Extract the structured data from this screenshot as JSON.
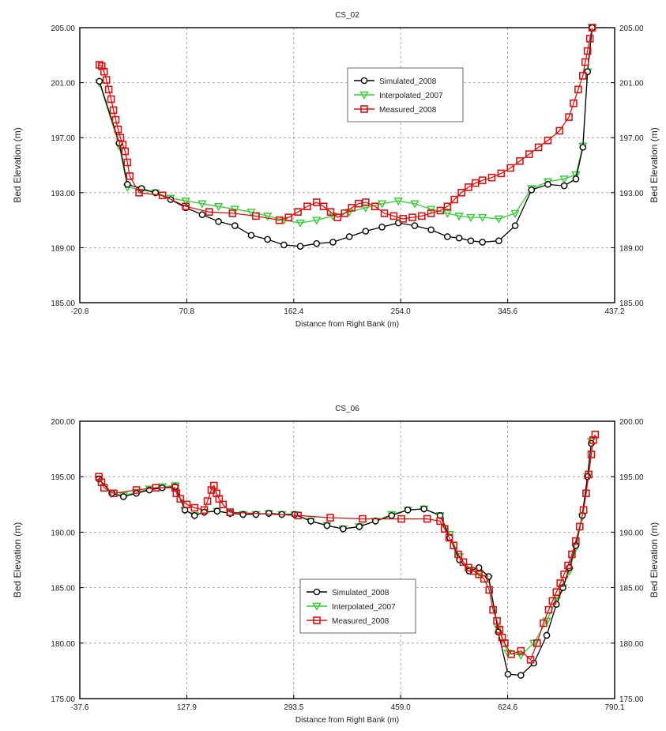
{
  "colors": {
    "simulated": "#000000",
    "interpolated": "#33cc33",
    "measured": "#dd1111",
    "grid": "#9a9a9a"
  },
  "chart_data": [
    {
      "type": "line",
      "title": "CS_02",
      "xlabel": "Distance from Right Bank (m)",
      "ylabel": "Bed Elevation (m)",
      "xlim": [
        -20.8,
        437.2
      ],
      "ylim": [
        185.0,
        205.0
      ],
      "xticks": [
        "-20.8",
        "70.8",
        "162.4",
        "254.0",
        "345.6",
        "437.2"
      ],
      "yticks": [
        "185.00",
        "189.00",
        "193.00",
        "197.00",
        "201.00",
        "205.00"
      ],
      "grid": true,
      "legend_position": "top-center",
      "series": [
        {
          "name": "Simulated_2008",
          "marker": "circle",
          "x": [
            -4,
            13,
            20,
            32,
            44,
            57,
            70,
            84,
            98,
            112,
            126,
            140,
            154,
            168,
            182,
            196,
            210,
            224,
            238,
            252,
            266,
            280,
            294,
            304,
            314,
            324,
            338,
            352,
            366,
            380,
            394,
            404,
            410,
            414,
            418
          ],
          "y": [
            201.1,
            196.6,
            193.6,
            193.3,
            193.0,
            192.5,
            191.9,
            191.4,
            190.9,
            190.6,
            189.9,
            189.6,
            189.2,
            189.1,
            189.3,
            189.4,
            189.8,
            190.2,
            190.5,
            190.8,
            190.6,
            190.3,
            189.8,
            189.7,
            189.5,
            189.4,
            189.5,
            190.6,
            193.2,
            193.6,
            193.5,
            194.0,
            196.3,
            201.8,
            205.0
          ]
        },
        {
          "name": "Interpolated_2007",
          "marker": "triangle-down",
          "x": [
            -4,
            13,
            20,
            32,
            44,
            57,
            70,
            84,
            98,
            112,
            126,
            140,
            154,
            168,
            182,
            196,
            210,
            224,
            238,
            252,
            266,
            280,
            294,
            304,
            314,
            324,
            338,
            352,
            366,
            380,
            394,
            404,
            410,
            414,
            418
          ],
          "y": [
            201.0,
            196.4,
            193.4,
            193.2,
            193.0,
            192.6,
            192.4,
            192.2,
            192.0,
            191.8,
            191.6,
            191.3,
            191.0,
            190.8,
            191.0,
            191.3,
            191.6,
            191.9,
            192.2,
            192.4,
            192.2,
            191.8,
            191.5,
            191.3,
            191.2,
            191.2,
            191.1,
            191.5,
            193.3,
            193.8,
            194.0,
            194.3,
            196.4,
            201.8,
            205.0
          ]
        },
        {
          "name": "Measured_2008",
          "marker": "square",
          "x": [
            -4,
            -2,
            0,
            2,
            4,
            6,
            8,
            10,
            12,
            14,
            16,
            18,
            20,
            22,
            30,
            50,
            70,
            90,
            110,
            130,
            150,
            158,
            166,
            174,
            182,
            188,
            194,
            200,
            206,
            212,
            218,
            224,
            232,
            240,
            248,
            256,
            264,
            272,
            280,
            288,
            294,
            300,
            306,
            312,
            318,
            324,
            332,
            340,
            348,
            356,
            364,
            372,
            380,
            390,
            398,
            402,
            406,
            410,
            412,
            414,
            416,
            418
          ],
          "y": [
            202.3,
            202.2,
            201.8,
            201.2,
            200.5,
            199.8,
            199.0,
            198.3,
            197.6,
            197.0,
            196.5,
            196.0,
            195.2,
            194.2,
            193.0,
            192.8,
            192.0,
            191.6,
            191.5,
            191.3,
            191.0,
            191.2,
            191.6,
            192.0,
            192.3,
            192.0,
            191.6,
            191.2,
            191.5,
            191.9,
            192.2,
            192.3,
            192.0,
            191.5,
            191.3,
            191.1,
            191.2,
            191.3,
            191.5,
            191.7,
            192.0,
            192.5,
            193.0,
            193.4,
            193.7,
            193.9,
            194.1,
            194.4,
            194.8,
            195.3,
            195.8,
            196.3,
            196.8,
            197.5,
            198.5,
            199.5,
            200.5,
            201.5,
            202.5,
            203.3,
            204.2,
            205.0
          ]
        }
      ]
    },
    {
      "type": "line",
      "title": "CS_06",
      "xlabel": "Distance from Right Bank (m)",
      "ylabel": "Bed Elevation (m)",
      "xlim": [
        -37.6,
        790.1
      ],
      "ylim": [
        175.0,
        200.0
      ],
      "xticks": [
        "-37.6",
        "127.9",
        "293.5",
        "459.0",
        "624.6",
        "790.1"
      ],
      "yticks": [
        "175.00",
        "180.00",
        "185.00",
        "190.00",
        "195.00",
        "200.00"
      ],
      "grid": true,
      "legend_position": "bottom-center",
      "series": [
        {
          "name": "Simulated_2008",
          "marker": "circle",
          "x": [
            -8,
            12,
            30,
            50,
            70,
            90,
            110,
            125,
            140,
            155,
            175,
            195,
            215,
            235,
            255,
            275,
            295,
            320,
            345,
            370,
            395,
            420,
            445,
            470,
            495,
            520,
            535,
            550,
            565,
            580,
            595,
            610,
            625,
            645,
            665,
            685,
            700,
            710,
            720,
            730,
            740,
            748,
            754
          ],
          "y": [
            194.8,
            193.5,
            193.2,
            193.5,
            193.8,
            194.0,
            194.1,
            192.0,
            191.5,
            191.8,
            191.9,
            191.7,
            191.6,
            191.6,
            191.7,
            191.6,
            191.6,
            191.0,
            190.6,
            190.3,
            190.5,
            191.0,
            191.5,
            192.0,
            192.1,
            191.5,
            189.5,
            187.5,
            186.5,
            186.8,
            186.0,
            181.0,
            177.2,
            177.1,
            178.2,
            180.7,
            183.5,
            185.0,
            186.8,
            188.8,
            191.5,
            195.0,
            198.0
          ]
        },
        {
          "name": "Interpolated_2007",
          "marker": "triangle-down",
          "x": [
            -8,
            12,
            30,
            50,
            70,
            90,
            110,
            125,
            140,
            155,
            175,
            195,
            215,
            235,
            255,
            275,
            295,
            320,
            345,
            370,
            395,
            420,
            445,
            470,
            495,
            520,
            535,
            550,
            565,
            580,
            595,
            610,
            625,
            645,
            665,
            685,
            700,
            710,
            720,
            730,
            740,
            748,
            754
          ],
          "y": [
            194.8,
            193.5,
            193.3,
            193.6,
            193.9,
            194.1,
            194.2,
            192.0,
            191.5,
            191.8,
            191.9,
            191.7,
            191.6,
            191.6,
            191.7,
            191.6,
            191.6,
            191.0,
            190.6,
            190.3,
            190.5,
            191.0,
            191.6,
            192.0,
            192.1,
            191.5,
            189.8,
            187.8,
            186.6,
            186.3,
            185.8,
            181.3,
            179.1,
            178.9,
            180.0,
            182.0,
            183.9,
            185.0,
            186.5,
            188.6,
            191.4,
            195.0,
            198.2
          ]
        },
        {
          "name": "Measured_2008",
          "marker": "square",
          "x": [
            -8,
            -4,
            0,
            15,
            50,
            80,
            110,
            112,
            118,
            128,
            140,
            155,
            160,
            166,
            170,
            174,
            178,
            184,
            195,
            300,
            350,
            400,
            460,
            500,
            520,
            527,
            534,
            541,
            548,
            556,
            564,
            572,
            580,
            588,
            596,
            602,
            608,
            612,
            616,
            620,
            630,
            645,
            660,
            670,
            680,
            688,
            694,
            700,
            706,
            712,
            718,
            724,
            730,
            736,
            742,
            746,
            750,
            754,
            757,
            760
          ],
          "y": [
            195.0,
            194.5,
            194.0,
            193.5,
            193.8,
            194.0,
            194.0,
            193.5,
            193.0,
            192.5,
            192.2,
            192.0,
            192.8,
            193.8,
            194.2,
            193.5,
            193.0,
            192.5,
            191.8,
            191.5,
            191.3,
            191.2,
            191.2,
            191.2,
            191.0,
            190.3,
            189.5,
            188.8,
            188.0,
            187.3,
            186.8,
            186.5,
            186.2,
            185.8,
            184.8,
            183.0,
            182.0,
            181.2,
            180.5,
            180.0,
            179.0,
            179.3,
            178.5,
            180.0,
            181.8,
            183.0,
            183.8,
            184.6,
            185.4,
            186.2,
            187.0,
            188.0,
            189.2,
            190.5,
            192.0,
            193.5,
            195.2,
            197.0,
            198.3,
            198.8
          ]
        }
      ]
    }
  ]
}
